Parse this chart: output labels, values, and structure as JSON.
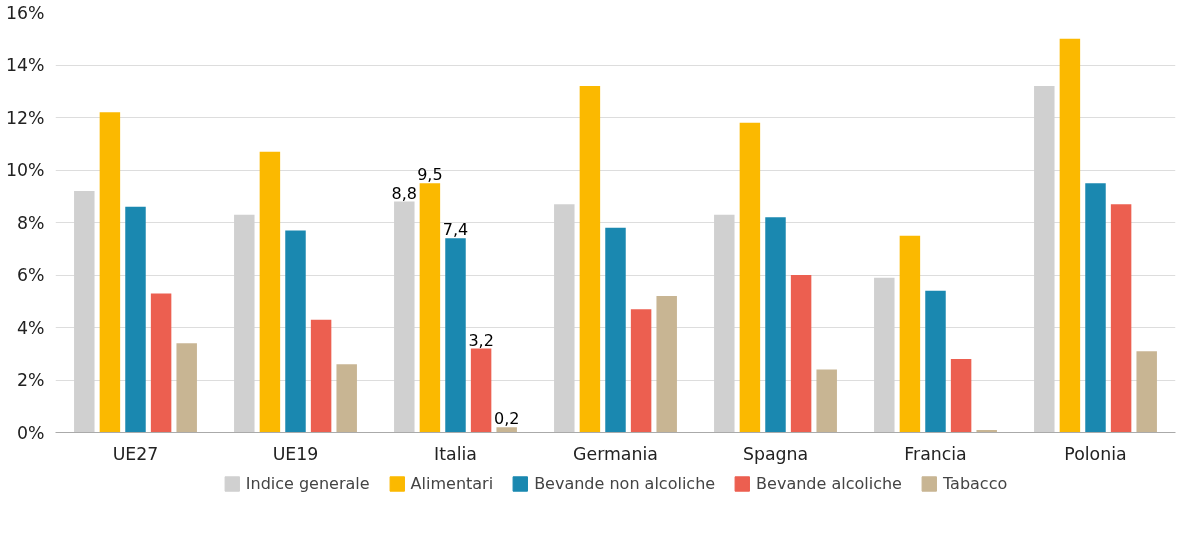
{
  "chart_data": {
    "type": "bar",
    "categories": [
      "UE27",
      "UE19",
      "Italia",
      "Germania",
      "Spagna",
      "Francia",
      "Polonia"
    ],
    "series": [
      {
        "name": "Indice generale",
        "color": "#d0d0d0",
        "values": [
          9.2,
          8.3,
          8.8,
          8.7,
          8.3,
          5.9,
          13.2
        ],
        "value_labels": [
          null,
          null,
          "8,8",
          null,
          null,
          null,
          null
        ]
      },
      {
        "name": "Alimentari",
        "color": "#fbb900",
        "values": [
          12.2,
          10.7,
          9.5,
          13.2,
          11.8,
          7.5,
          15.0
        ],
        "value_labels": [
          null,
          null,
          "9,5",
          null,
          null,
          null,
          null
        ]
      },
      {
        "name": "Bevande non alcoliche",
        "color": "#1a88b0",
        "values": [
          8.6,
          7.7,
          7.4,
          7.8,
          8.2,
          5.4,
          9.5
        ],
        "value_labels": [
          null,
          null,
          "7,4",
          null,
          null,
          null,
          null
        ]
      },
      {
        "name": "Bevande alcoliche",
        "color": "#ec5f50",
        "values": [
          5.3,
          4.3,
          3.2,
          4.7,
          6.0,
          2.8,
          8.7
        ],
        "value_labels": [
          null,
          null,
          "3,2",
          null,
          null,
          null,
          null
        ]
      },
      {
        "name": "Tabacco",
        "color": "#c8b593",
        "values": [
          3.4,
          2.6,
          0.2,
          5.2,
          2.4,
          0.1,
          3.1
        ],
        "value_labels": [
          null,
          null,
          "0,2",
          null,
          null,
          null,
          null
        ]
      }
    ],
    "ylim": [
      0,
      16
    ],
    "yticks": [
      {
        "value": 0,
        "label": "0%"
      },
      {
        "value": 2,
        "label": "2%"
      },
      {
        "value": 4,
        "label": "4%"
      },
      {
        "value": 6,
        "label": "6%"
      },
      {
        "value": 8,
        "label": "8%"
      },
      {
        "value": 10,
        "label": "10%"
      },
      {
        "value": 12,
        "label": "12%"
      },
      {
        "value": 14,
        "label": "14%"
      },
      {
        "value": 16,
        "label": "16%"
      }
    ],
    "grid": "y",
    "legend": "bottom"
  }
}
